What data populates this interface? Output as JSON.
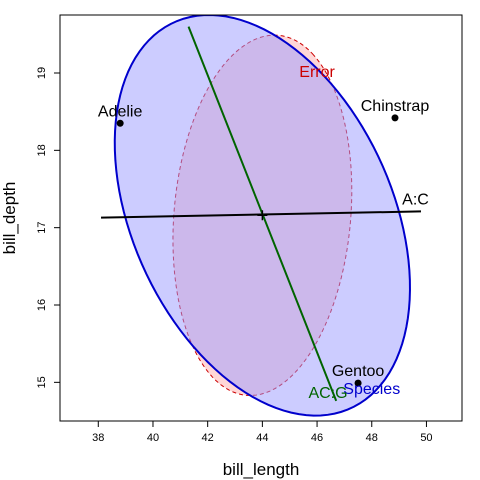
{
  "chart_data": {
    "type": "scatter",
    "xlabel": "bill_length",
    "ylabel": "bill_depth",
    "xlim": [
      36.6,
      51.3
    ],
    "ylim": [
      14.5,
      19.75
    ],
    "x_ticks": [
      38,
      40,
      42,
      44,
      46,
      48,
      50
    ],
    "y_ticks": [
      15,
      16,
      17,
      18,
      19
    ],
    "grid": false,
    "points": [
      {
        "label": "Adelie",
        "x": 38.8,
        "y": 18.35
      },
      {
        "label": "Chinstrap",
        "x": 48.85,
        "y": 18.42
      },
      {
        "label": "Gentoo",
        "x": 47.5,
        "y": 14.99
      }
    ],
    "center": {
      "x": 44.0,
      "y": 17.16
    },
    "ellipses": [
      {
        "label": "Error",
        "color": "#cc0000",
        "fill": "#ffb0b0",
        "style": "dashed",
        "cx": 44.0,
        "cy": 17.16,
        "v1": [
          1.83,
          2.09
        ],
        "v2": [
          2.71,
          -1.03
        ],
        "label_at": {
          "x": 46.0,
          "y": 18.95
        }
      },
      {
        "label": "Species",
        "color": "#0000cc",
        "fill": "#9999ff",
        "style": "solid",
        "cx": 44.0,
        "cy": 17.16,
        "v1": [
          -2.39,
          2.58
        ],
        "v2": [
          4.84,
          0.23
        ],
        "label_at": {
          "x": 48.0,
          "y": 14.85
        }
      }
    ],
    "lines": [
      {
        "label": "A:C",
        "color": "#000000",
        "from": [
          38.1,
          17.13
        ],
        "to": [
          49.8,
          17.21
        ],
        "label_at": {
          "x": 49.6,
          "y": 17.3
        }
      },
      {
        "label": "AC:G",
        "color": "#006400",
        "from": [
          41.3,
          19.6
        ],
        "to": [
          46.7,
          14.76
        ],
        "label_at": {
          "x": 46.4,
          "y": 14.8
        }
      }
    ]
  }
}
